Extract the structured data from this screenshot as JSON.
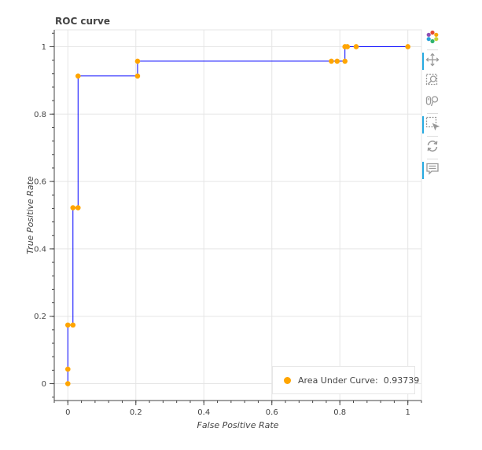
{
  "title": "ROC curve",
  "toolbar": {
    "tools": [
      {
        "name": "bokeh-logo-icon",
        "active": false
      },
      {
        "name": "pan-icon",
        "active": true
      },
      {
        "name": "box-zoom-icon",
        "active": false
      },
      {
        "name": "wheel-zoom-icon",
        "active": false
      },
      {
        "name": "box-select-icon",
        "active": true
      },
      {
        "name": "reset-icon",
        "active": false
      },
      {
        "name": "hover-icon",
        "active": true
      }
    ]
  },
  "legend": {
    "label": "Area Under Curve:  0.93739",
    "color": "#ffa500"
  },
  "colors": {
    "line": "#0000ff",
    "points": "#ffa500",
    "grid": "#e5e5e5",
    "axis": "#444444"
  },
  "chart_data": {
    "type": "line",
    "title": "ROC curve",
    "xlabel": "False Positive Rate",
    "ylabel": "True Positive Rate",
    "xlim": [
      -0.04,
      1.04
    ],
    "ylim": [
      -0.05,
      1.05
    ],
    "x_ticks": [
      0,
      0.2,
      0.4,
      0.6,
      0.8,
      1
    ],
    "x_tick_labels": [
      "0",
      "0.2",
      "0.4",
      "0.6",
      "0.8",
      "1"
    ],
    "y_ticks": [
      0,
      0.2,
      0.4,
      0.6,
      0.8,
      1
    ],
    "y_tick_labels": [
      "0",
      "0.2",
      "0.4",
      "0.6",
      "0.8",
      "1"
    ],
    "grid": true,
    "legend_position": "bottom-right",
    "series": [
      {
        "name": "Area Under Curve:  0.93739",
        "step": true,
        "x": [
          0,
          0,
          0,
          0.015,
          0.015,
          0.03,
          0.03,
          0.205,
          0.205,
          0.775,
          0.792,
          0.815,
          0.815,
          0.822,
          0.848,
          1.0
        ],
        "y": [
          0,
          0.043,
          0.174,
          0.174,
          0.522,
          0.522,
          0.913,
          0.913,
          0.957,
          0.957,
          0.957,
          0.957,
          1.0,
          1.0,
          1.0,
          1.0
        ]
      }
    ],
    "auc": 0.93739
  }
}
